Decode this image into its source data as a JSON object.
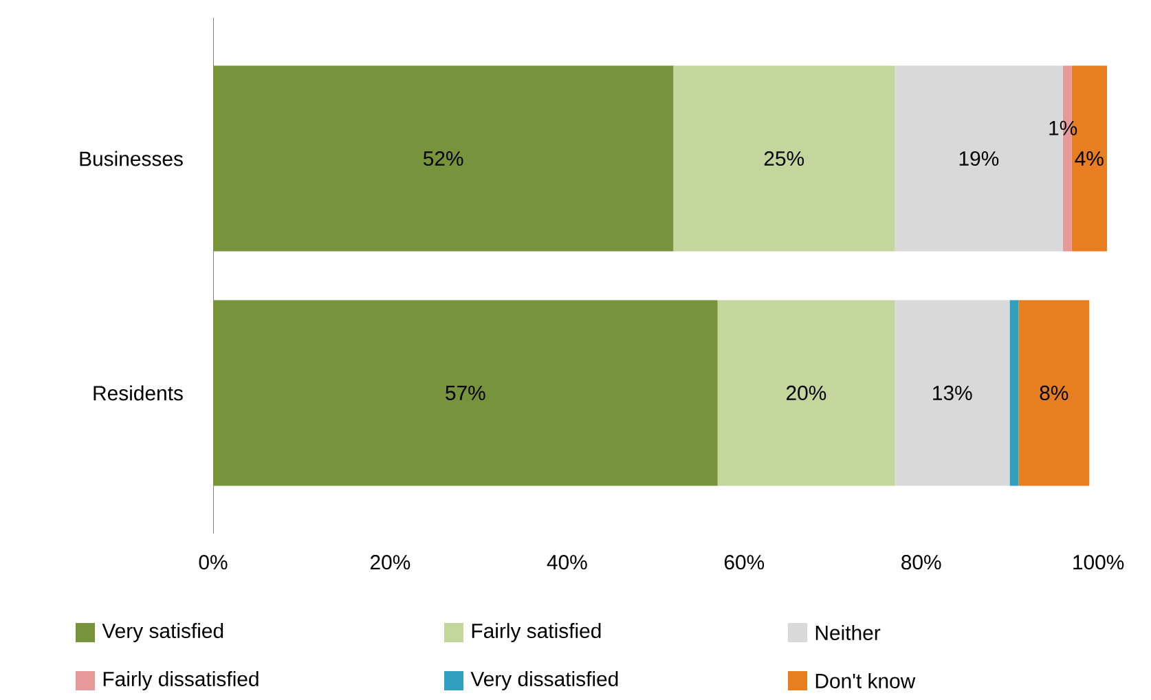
{
  "chart_data": {
    "type": "bar",
    "orientation": "horizontal",
    "stacked": true,
    "categories": [
      "Businesses",
      "Residents"
    ],
    "series": [
      {
        "name": "Very satisfied",
        "color": "#77933c",
        "values": [
          52,
          57
        ],
        "value_labels": [
          "52%",
          "57%"
        ]
      },
      {
        "name": "Fairly satisfied",
        "color": "#c3d69b",
        "values": [
          25,
          20
        ],
        "value_labels": [
          "25%",
          "20%"
        ]
      },
      {
        "name": "Neither",
        "color": "#d9d9d9",
        "values": [
          19,
          13
        ],
        "value_labels": [
          "19%",
          "13%"
        ]
      },
      {
        "name": "Fairly dissatisfied",
        "color": "#e6999a",
        "values": [
          1,
          0
        ],
        "value_labels": [
          "1%",
          null
        ]
      },
      {
        "name": "Very dissatisfied",
        "color": "#31a0c0",
        "values": [
          0,
          1
        ],
        "value_labels": [
          null,
          null
        ]
      },
      {
        "name": "Don't know",
        "color": "#e87e22",
        "values": [
          4,
          8
        ],
        "value_labels": [
          "4%",
          "8%"
        ]
      }
    ],
    "xlim": [
      0,
      101
    ],
    "xticks": [
      {
        "value": 0,
        "label": "0%"
      },
      {
        "value": 20,
        "label": "20%"
      },
      {
        "value": 40,
        "label": "40%"
      },
      {
        "value": 60,
        "label": "60%"
      },
      {
        "value": 80,
        "label": "80%"
      },
      {
        "value": 100,
        "label": "100%"
      }
    ],
    "legend": "bottom",
    "grid": false
  }
}
